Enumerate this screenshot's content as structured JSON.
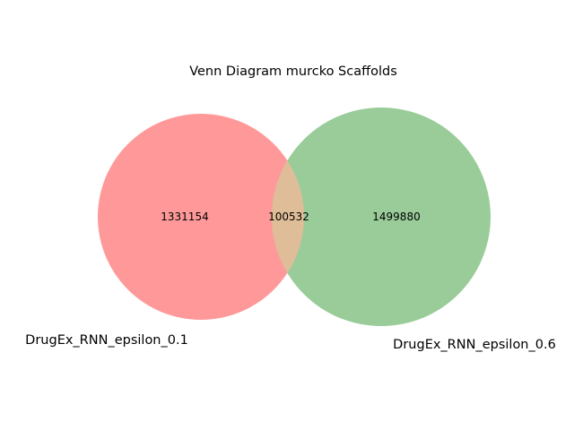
{
  "diagram": {
    "title": "Venn Diagram murcko Scaffolds",
    "sets": [
      {
        "name": "DrugEx_RNN_epsilon_0.1",
        "only_count": "1331154",
        "color": "#ff9999"
      },
      {
        "name": "DrugEx_RNN_epsilon_0.6",
        "only_count": "1499880",
        "color": "#99cc99"
      }
    ],
    "intersection": {
      "count": "100532",
      "color": "#e0bd99"
    }
  }
}
